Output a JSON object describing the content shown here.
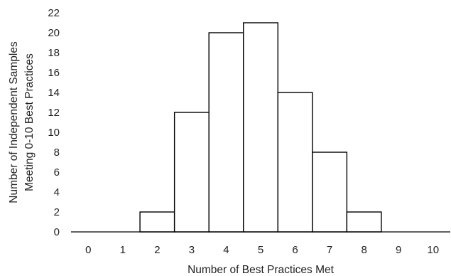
{
  "chart_data": {
    "type": "bar",
    "categories": [
      "0",
      "1",
      "2",
      "3",
      "4",
      "5",
      "6",
      "7",
      "8",
      "9",
      "10"
    ],
    "values": [
      0,
      0,
      2,
      12,
      20,
      21,
      14,
      8,
      2,
      0,
      0
    ],
    "title": "",
    "xlabel": "Number of Best Practices Met",
    "ylabel_lines": [
      "Number of Independent Samples",
      "Meeting 0-10 Best Practices"
    ],
    "ylim": [
      0,
      22
    ],
    "yticks": [
      "0",
      "2",
      "4",
      "6",
      "8",
      "10",
      "12",
      "14",
      "16",
      "18",
      "20",
      "22"
    ],
    "grid": false,
    "legend": "none",
    "bar_fill": "#ffffff",
    "bar_stroke": "#000000"
  }
}
